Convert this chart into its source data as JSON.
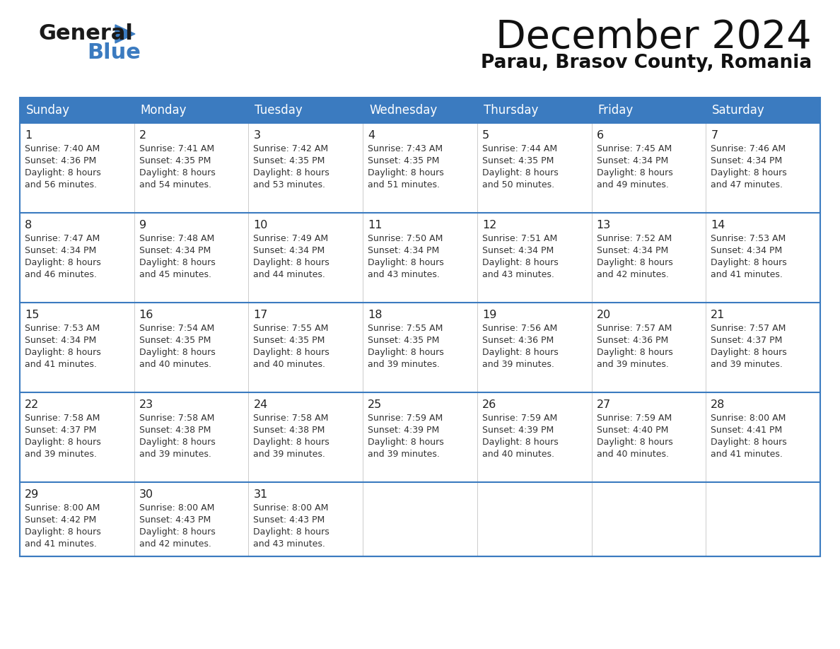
{
  "title": "December 2024",
  "subtitle": "Parau, Brasov County, Romania",
  "header_color": "#3b7bc0",
  "header_text_color": "#ffffff",
  "bg_color": "#ffffff",
  "row_bg": "#ffffff",
  "border_color": "#3b7bc0",
  "cell_line_color": "#cccccc",
  "text_color": "#333333",
  "day_num_color": "#222222",
  "days_of_week": [
    "Sunday",
    "Monday",
    "Tuesday",
    "Wednesday",
    "Thursday",
    "Friday",
    "Saturday"
  ],
  "weeks": [
    [
      {
        "day": 1,
        "sunrise": "7:40 AM",
        "sunset": "4:36 PM",
        "daylight": "8 hours and 56 minutes."
      },
      {
        "day": 2,
        "sunrise": "7:41 AM",
        "sunset": "4:35 PM",
        "daylight": "8 hours and 54 minutes."
      },
      {
        "day": 3,
        "sunrise": "7:42 AM",
        "sunset": "4:35 PM",
        "daylight": "8 hours and 53 minutes."
      },
      {
        "day": 4,
        "sunrise": "7:43 AM",
        "sunset": "4:35 PM",
        "daylight": "8 hours and 51 minutes."
      },
      {
        "day": 5,
        "sunrise": "7:44 AM",
        "sunset": "4:35 PM",
        "daylight": "8 hours and 50 minutes."
      },
      {
        "day": 6,
        "sunrise": "7:45 AM",
        "sunset": "4:34 PM",
        "daylight": "8 hours and 49 minutes."
      },
      {
        "day": 7,
        "sunrise": "7:46 AM",
        "sunset": "4:34 PM",
        "daylight": "8 hours and 47 minutes."
      }
    ],
    [
      {
        "day": 8,
        "sunrise": "7:47 AM",
        "sunset": "4:34 PM",
        "daylight": "8 hours and 46 minutes."
      },
      {
        "day": 9,
        "sunrise": "7:48 AM",
        "sunset": "4:34 PM",
        "daylight": "8 hours and 45 minutes."
      },
      {
        "day": 10,
        "sunrise": "7:49 AM",
        "sunset": "4:34 PM",
        "daylight": "8 hours and 44 minutes."
      },
      {
        "day": 11,
        "sunrise": "7:50 AM",
        "sunset": "4:34 PM",
        "daylight": "8 hours and 43 minutes."
      },
      {
        "day": 12,
        "sunrise": "7:51 AM",
        "sunset": "4:34 PM",
        "daylight": "8 hours and 43 minutes."
      },
      {
        "day": 13,
        "sunrise": "7:52 AM",
        "sunset": "4:34 PM",
        "daylight": "8 hours and 42 minutes."
      },
      {
        "day": 14,
        "sunrise": "7:53 AM",
        "sunset": "4:34 PM",
        "daylight": "8 hours and 41 minutes."
      }
    ],
    [
      {
        "day": 15,
        "sunrise": "7:53 AM",
        "sunset": "4:34 PM",
        "daylight": "8 hours and 41 minutes."
      },
      {
        "day": 16,
        "sunrise": "7:54 AM",
        "sunset": "4:35 PM",
        "daylight": "8 hours and 40 minutes."
      },
      {
        "day": 17,
        "sunrise": "7:55 AM",
        "sunset": "4:35 PM",
        "daylight": "8 hours and 40 minutes."
      },
      {
        "day": 18,
        "sunrise": "7:55 AM",
        "sunset": "4:35 PM",
        "daylight": "8 hours and 39 minutes."
      },
      {
        "day": 19,
        "sunrise": "7:56 AM",
        "sunset": "4:36 PM",
        "daylight": "8 hours and 39 minutes."
      },
      {
        "day": 20,
        "sunrise": "7:57 AM",
        "sunset": "4:36 PM",
        "daylight": "8 hours and 39 minutes."
      },
      {
        "day": 21,
        "sunrise": "7:57 AM",
        "sunset": "4:37 PM",
        "daylight": "8 hours and 39 minutes."
      }
    ],
    [
      {
        "day": 22,
        "sunrise": "7:58 AM",
        "sunset": "4:37 PM",
        "daylight": "8 hours and 39 minutes."
      },
      {
        "day": 23,
        "sunrise": "7:58 AM",
        "sunset": "4:38 PM",
        "daylight": "8 hours and 39 minutes."
      },
      {
        "day": 24,
        "sunrise": "7:58 AM",
        "sunset": "4:38 PM",
        "daylight": "8 hours and 39 minutes."
      },
      {
        "day": 25,
        "sunrise": "7:59 AM",
        "sunset": "4:39 PM",
        "daylight": "8 hours and 39 minutes."
      },
      {
        "day": 26,
        "sunrise": "7:59 AM",
        "sunset": "4:39 PM",
        "daylight": "8 hours and 40 minutes."
      },
      {
        "day": 27,
        "sunrise": "7:59 AM",
        "sunset": "4:40 PM",
        "daylight": "8 hours and 40 minutes."
      },
      {
        "day": 28,
        "sunrise": "8:00 AM",
        "sunset": "4:41 PM",
        "daylight": "8 hours and 41 minutes."
      }
    ],
    [
      {
        "day": 29,
        "sunrise": "8:00 AM",
        "sunset": "4:42 PM",
        "daylight": "8 hours and 41 minutes."
      },
      {
        "day": 30,
        "sunrise": "8:00 AM",
        "sunset": "4:43 PM",
        "daylight": "8 hours and 42 minutes."
      },
      {
        "day": 31,
        "sunrise": "8:00 AM",
        "sunset": "4:43 PM",
        "daylight": "8 hours and 43 minutes."
      },
      null,
      null,
      null,
      null
    ]
  ]
}
